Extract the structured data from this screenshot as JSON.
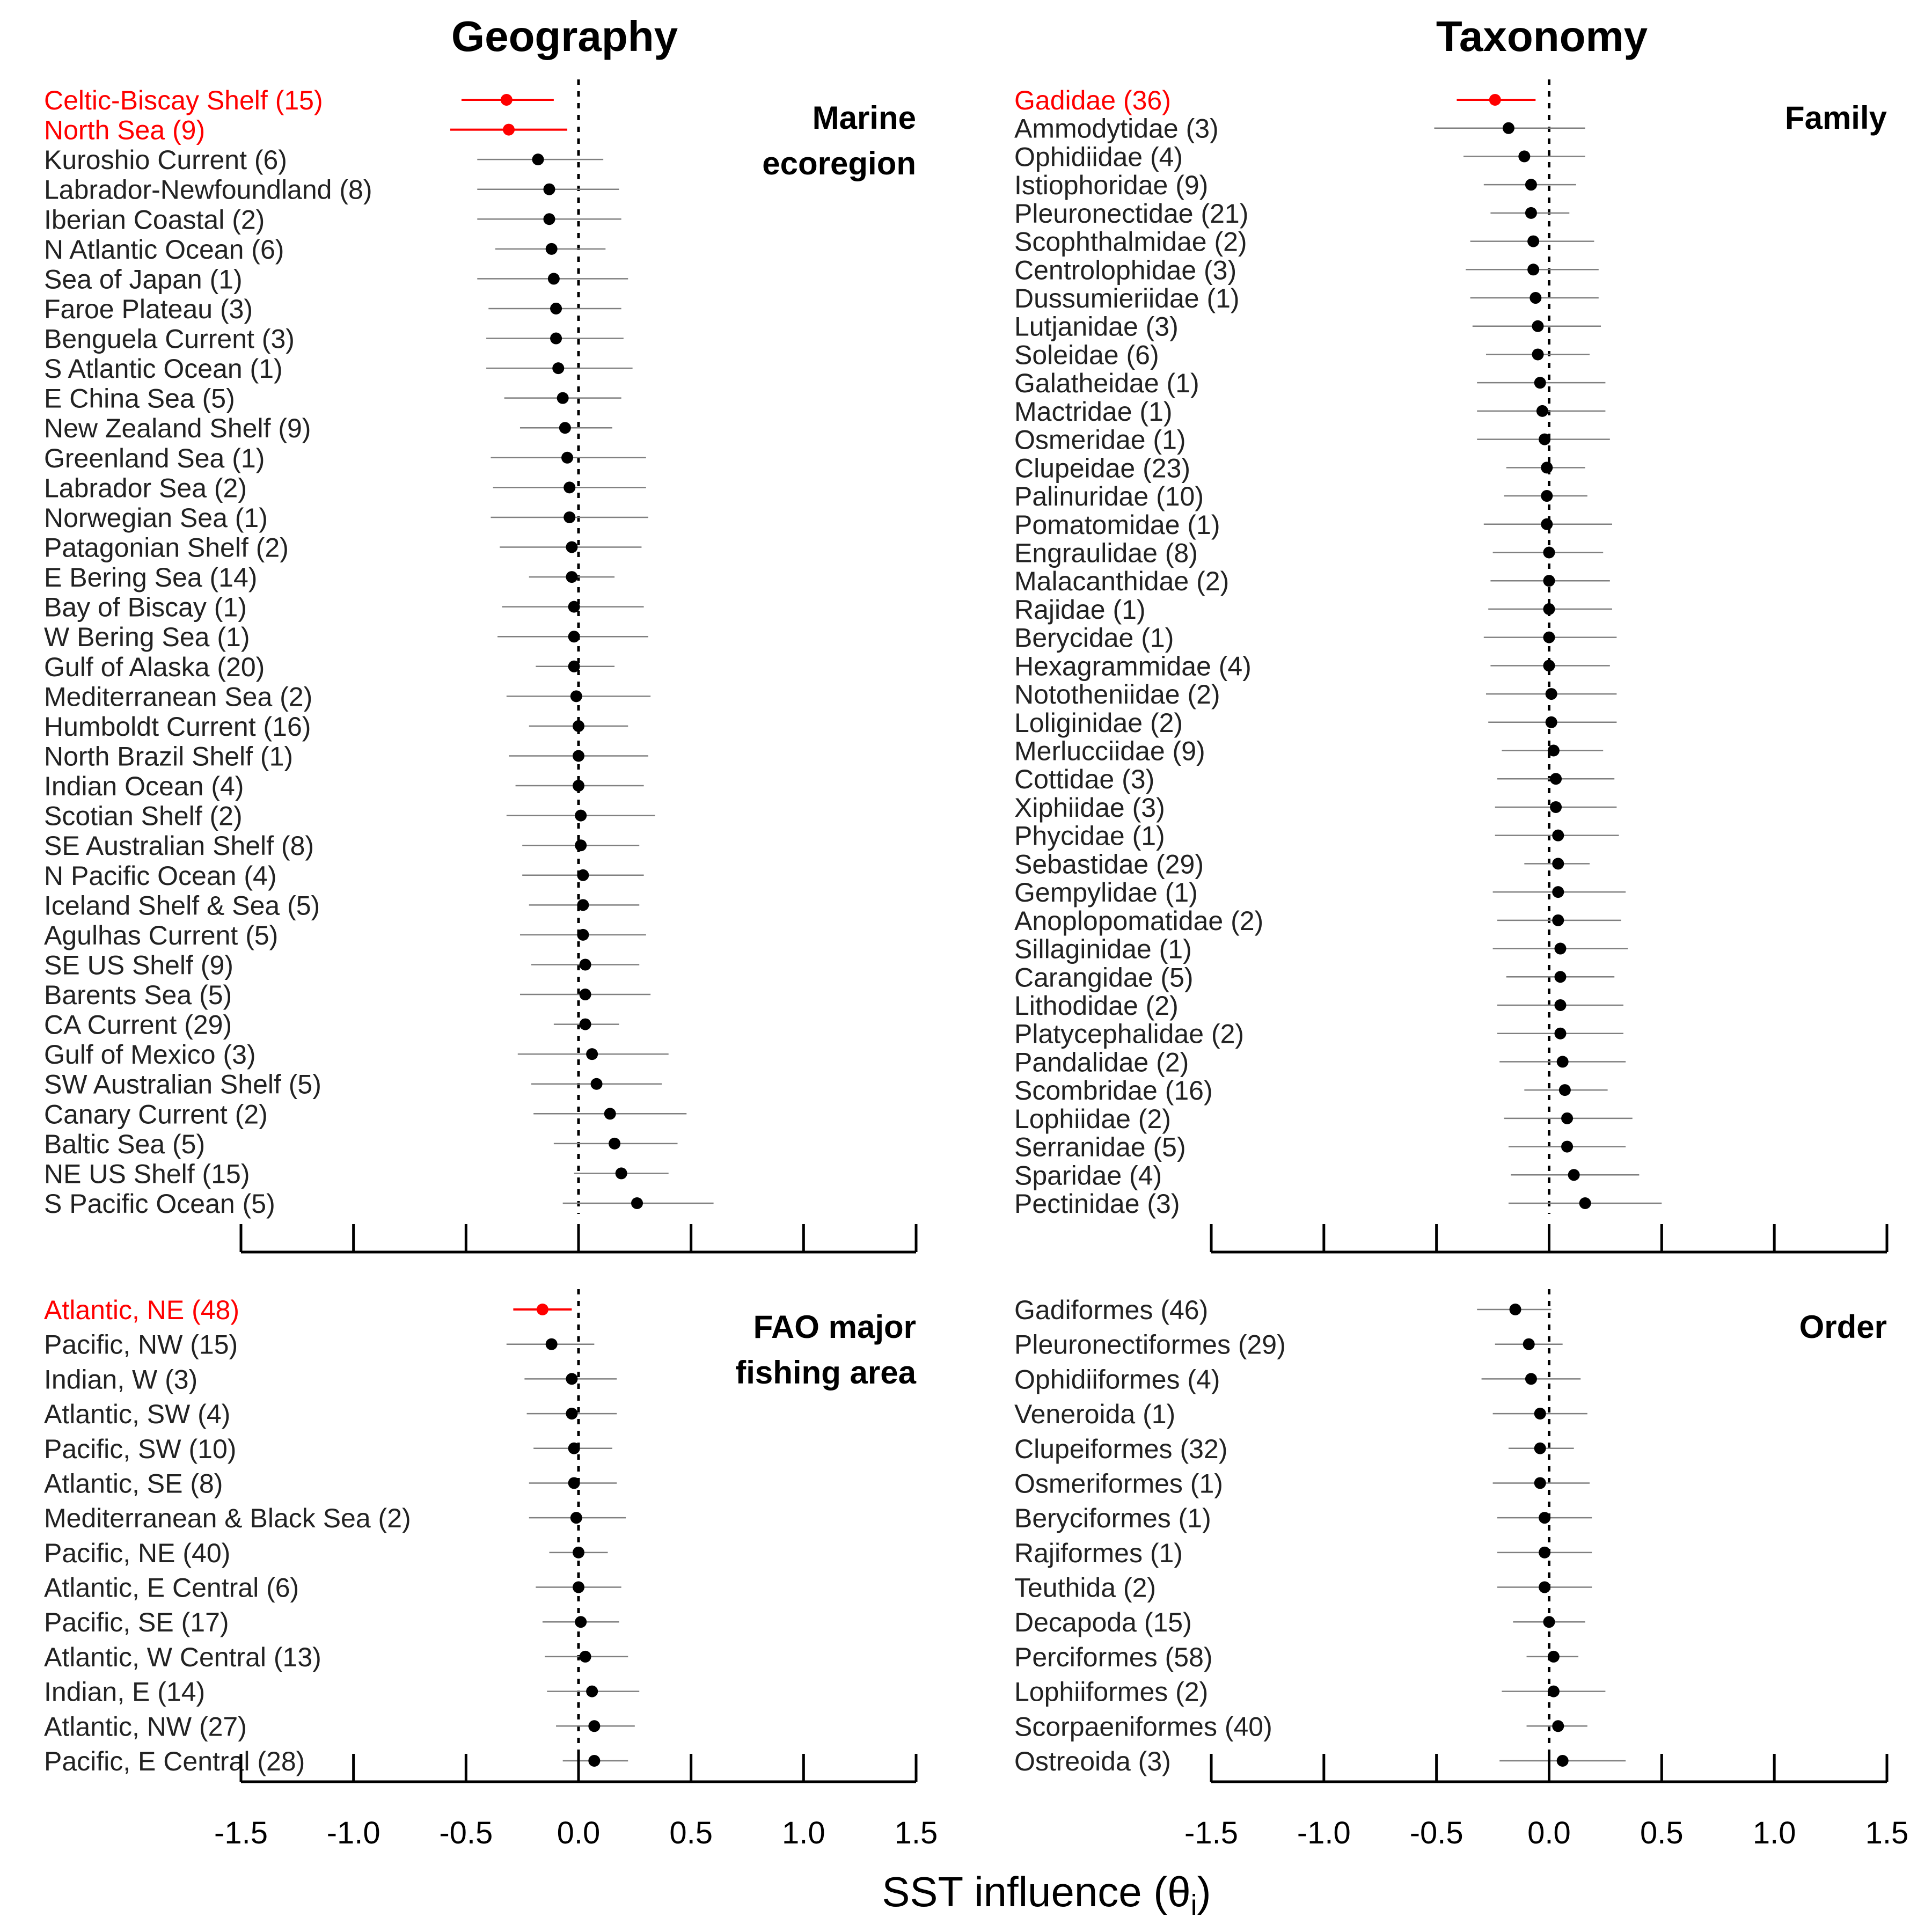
{
  "column_titles": [
    "Geography",
    "Taxonomy"
  ],
  "x_axis": {
    "label": "SST influence (θ",
    "label_sub": "i",
    "label_close": ")",
    "ticks": [
      -1.5,
      -1.0,
      -0.5,
      0.0,
      0.5,
      1.0,
      1.5
    ],
    "tick_labels": [
      "-1.5",
      "-1.0",
      "-0.5",
      "0.0",
      "0.5",
      "1.0",
      "1.5"
    ]
  },
  "colors": {
    "highlight": "#ff0000",
    "normal": "#000000",
    "ci": "#808080"
  },
  "chart_data": [
    {
      "type": "scatter",
      "title_lines": [
        "Marine",
        "ecoregion"
      ],
      "xlim": [
        -1.5,
        1.5
      ],
      "items": [
        {
          "label": "Celtic-Biscay Shelf (15)",
          "est": -0.32,
          "lo": -0.52,
          "hi": -0.11,
          "highlight": true
        },
        {
          "label": "North Sea (9)",
          "est": -0.31,
          "lo": -0.57,
          "hi": -0.05,
          "highlight": true
        },
        {
          "label": "Kuroshio Current (6)",
          "est": -0.18,
          "lo": -0.45,
          "hi": 0.11
        },
        {
          "label": "Labrador-Newfoundland (8)",
          "est": -0.13,
          "lo": -0.45,
          "hi": 0.18
        },
        {
          "label": "Iberian Coastal (2)",
          "est": -0.13,
          "lo": -0.45,
          "hi": 0.19
        },
        {
          "label": "N Atlantic Ocean (6)",
          "est": -0.12,
          "lo": -0.37,
          "hi": 0.12
        },
        {
          "label": "Sea of Japan (1)",
          "est": -0.11,
          "lo": -0.45,
          "hi": 0.22
        },
        {
          "label": "Faroe Plateau (3)",
          "est": -0.1,
          "lo": -0.4,
          "hi": 0.19
        },
        {
          "label": "Benguela Current (3)",
          "est": -0.1,
          "lo": -0.41,
          "hi": 0.2
        },
        {
          "label": "S Atlantic Ocean (1)",
          "est": -0.09,
          "lo": -0.41,
          "hi": 0.24
        },
        {
          "label": "E China Sea (5)",
          "est": -0.07,
          "lo": -0.33,
          "hi": 0.19
        },
        {
          "label": "New Zealand Shelf (9)",
          "est": -0.06,
          "lo": -0.26,
          "hi": 0.15
        },
        {
          "label": "Greenland Sea (1)",
          "est": -0.05,
          "lo": -0.39,
          "hi": 0.3
        },
        {
          "label": "Labrador Sea (2)",
          "est": -0.04,
          "lo": -0.38,
          "hi": 0.3
        },
        {
          "label": "Norwegian Sea (1)",
          "est": -0.04,
          "lo": -0.39,
          "hi": 0.31
        },
        {
          "label": "Patagonian Shelf (2)",
          "est": -0.03,
          "lo": -0.35,
          "hi": 0.28
        },
        {
          "label": "E Bering Sea (14)",
          "est": -0.03,
          "lo": -0.22,
          "hi": 0.16
        },
        {
          "label": "Bay of Biscay (1)",
          "est": -0.02,
          "lo": -0.34,
          "hi": 0.29
        },
        {
          "label": "W Bering Sea (1)",
          "est": -0.02,
          "lo": -0.36,
          "hi": 0.31
        },
        {
          "label": "Gulf of Alaska (20)",
          "est": -0.02,
          "lo": -0.19,
          "hi": 0.16
        },
        {
          "label": "Mediterranean Sea (2)",
          "est": -0.01,
          "lo": -0.32,
          "hi": 0.32
        },
        {
          "label": "Humboldt Current (16)",
          "est": 0.0,
          "lo": -0.22,
          "hi": 0.22
        },
        {
          "label": "North Brazil Shelf (1)",
          "est": 0.0,
          "lo": -0.31,
          "hi": 0.31
        },
        {
          "label": "Indian Ocean (4)",
          "est": 0.0,
          "lo": -0.28,
          "hi": 0.29
        },
        {
          "label": "Scotian Shelf (2)",
          "est": 0.01,
          "lo": -0.32,
          "hi": 0.34
        },
        {
          "label": "SE Australian Shelf (8)",
          "est": 0.01,
          "lo": -0.25,
          "hi": 0.27
        },
        {
          "label": "N Pacific Ocean (4)",
          "est": 0.02,
          "lo": -0.25,
          "hi": 0.29
        },
        {
          "label": "Iceland Shelf & Sea (5)",
          "est": 0.02,
          "lo": -0.22,
          "hi": 0.27
        },
        {
          "label": "Agulhas Current (5)",
          "est": 0.02,
          "lo": -0.26,
          "hi": 0.3
        },
        {
          "label": "SE US Shelf (9)",
          "est": 0.03,
          "lo": -0.21,
          "hi": 0.27
        },
        {
          "label": "Barents Sea (5)",
          "est": 0.03,
          "lo": -0.26,
          "hi": 0.32
        },
        {
          "label": "CA Current (29)",
          "est": 0.03,
          "lo": -0.11,
          "hi": 0.18
        },
        {
          "label": "Gulf of Mexico (3)",
          "est": 0.06,
          "lo": -0.27,
          "hi": 0.4
        },
        {
          "label": "SW Australian Shelf (5)",
          "est": 0.08,
          "lo": -0.21,
          "hi": 0.37
        },
        {
          "label": "Canary Current (2)",
          "est": 0.14,
          "lo": -0.2,
          "hi": 0.48
        },
        {
          "label": "Baltic Sea (5)",
          "est": 0.16,
          "lo": -0.11,
          "hi": 0.44
        },
        {
          "label": "NE US Shelf (15)",
          "est": 0.19,
          "lo": -0.02,
          "hi": 0.4
        },
        {
          "label": "S Pacific Ocean (5)",
          "est": 0.26,
          "lo": -0.07,
          "hi": 0.6
        }
      ]
    },
    {
      "type": "scatter",
      "title_lines": [
        "Family"
      ],
      "xlim": [
        -1.5,
        1.5
      ],
      "items": [
        {
          "label": "Gadidae (36)",
          "est": -0.24,
          "lo": -0.41,
          "hi": -0.06,
          "highlight": true
        },
        {
          "label": "Ammodytidae (3)",
          "est": -0.18,
          "lo": -0.51,
          "hi": 0.16
        },
        {
          "label": "Ophidiidae (4)",
          "est": -0.11,
          "lo": -0.38,
          "hi": 0.16
        },
        {
          "label": "Istiophoridae (9)",
          "est": -0.08,
          "lo": -0.29,
          "hi": 0.12
        },
        {
          "label": "Pleuronectidae (21)",
          "est": -0.08,
          "lo": -0.26,
          "hi": 0.09
        },
        {
          "label": "Scophthalmidae (2)",
          "est": -0.07,
          "lo": -0.35,
          "hi": 0.2
        },
        {
          "label": "Centrolophidae (3)",
          "est": -0.07,
          "lo": -0.37,
          "hi": 0.22
        },
        {
          "label": "Dussumieriidae (1)",
          "est": -0.06,
          "lo": -0.35,
          "hi": 0.22
        },
        {
          "label": "Lutjanidae (3)",
          "est": -0.05,
          "lo": -0.34,
          "hi": 0.23
        },
        {
          "label": "Soleidae (6)",
          "est": -0.05,
          "lo": -0.28,
          "hi": 0.18
        },
        {
          "label": "Galatheidae (1)",
          "est": -0.04,
          "lo": -0.32,
          "hi": 0.25
        },
        {
          "label": "Mactridae (1)",
          "est": -0.03,
          "lo": -0.32,
          "hi": 0.25
        },
        {
          "label": "Osmeridae (1)",
          "est": -0.02,
          "lo": -0.32,
          "hi": 0.27
        },
        {
          "label": "Clupeidae (23)",
          "est": -0.01,
          "lo": -0.19,
          "hi": 0.16
        },
        {
          "label": "Palinuridae (10)",
          "est": -0.01,
          "lo": -0.2,
          "hi": 0.17
        },
        {
          "label": "Pomatomidae (1)",
          "est": -0.01,
          "lo": -0.29,
          "hi": 0.28
        },
        {
          "label": "Engraulidae (8)",
          "est": 0.0,
          "lo": -0.25,
          "hi": 0.24
        },
        {
          "label": "Malacanthidae (2)",
          "est": 0.0,
          "lo": -0.26,
          "hi": 0.27
        },
        {
          "label": "Rajidae (1)",
          "est": 0.0,
          "lo": -0.27,
          "hi": 0.28
        },
        {
          "label": "Berycidae (1)",
          "est": 0.0,
          "lo": -0.29,
          "hi": 0.3
        },
        {
          "label": "Hexagrammidae (4)",
          "est": 0.0,
          "lo": -0.26,
          "hi": 0.27
        },
        {
          "label": "Nototheniidae (2)",
          "est": 0.01,
          "lo": -0.28,
          "hi": 0.3
        },
        {
          "label": "Loliginidae (2)",
          "est": 0.01,
          "lo": -0.27,
          "hi": 0.3
        },
        {
          "label": "Merlucciidae (9)",
          "est": 0.02,
          "lo": -0.21,
          "hi": 0.24
        },
        {
          "label": "Cottidae (3)",
          "est": 0.03,
          "lo": -0.23,
          "hi": 0.29
        },
        {
          "label": "Xiphiidae (3)",
          "est": 0.03,
          "lo": -0.24,
          "hi": 0.3
        },
        {
          "label": "Phycidae (1)",
          "est": 0.04,
          "lo": -0.24,
          "hi": 0.31
        },
        {
          "label": "Sebastidae (29)",
          "est": 0.04,
          "lo": -0.11,
          "hi": 0.18
        },
        {
          "label": "Gempylidae (1)",
          "est": 0.04,
          "lo": -0.25,
          "hi": 0.34
        },
        {
          "label": "Anoplopomatidae (2)",
          "est": 0.04,
          "lo": -0.23,
          "hi": 0.32
        },
        {
          "label": "Sillaginidae (1)",
          "est": 0.05,
          "lo": -0.25,
          "hi": 0.35
        },
        {
          "label": "Carangidae (5)",
          "est": 0.05,
          "lo": -0.19,
          "hi": 0.29
        },
        {
          "label": "Lithodidae (2)",
          "est": 0.05,
          "lo": -0.23,
          "hi": 0.33
        },
        {
          "label": "Platycephalidae (2)",
          "est": 0.05,
          "lo": -0.23,
          "hi": 0.33
        },
        {
          "label": "Pandalidae (2)",
          "est": 0.06,
          "lo": -0.22,
          "hi": 0.34
        },
        {
          "label": "Scombridae (16)",
          "est": 0.07,
          "lo": -0.11,
          "hi": 0.26
        },
        {
          "label": "Lophiidae (2)",
          "est": 0.08,
          "lo": -0.2,
          "hi": 0.37
        },
        {
          "label": "Serranidae (5)",
          "est": 0.08,
          "lo": -0.18,
          "hi": 0.34
        },
        {
          "label": "Sparidae (4)",
          "est": 0.11,
          "lo": -0.17,
          "hi": 0.4
        },
        {
          "label": "Pectinidae (3)",
          "est": 0.16,
          "lo": -0.18,
          "hi": 0.5
        }
      ]
    },
    {
      "type": "scatter",
      "title_lines": [
        "FAO major",
        "fishing area"
      ],
      "xlim": [
        -1.5,
        1.5
      ],
      "items": [
        {
          "label": "Atlantic, NE (48)",
          "est": -0.16,
          "lo": -0.29,
          "hi": -0.03,
          "highlight": true
        },
        {
          "label": "Pacific, NW (15)",
          "est": -0.12,
          "lo": -0.32,
          "hi": 0.07
        },
        {
          "label": "Indian, W (3)",
          "est": -0.03,
          "lo": -0.24,
          "hi": 0.17
        },
        {
          "label": "Atlantic, SW (4)",
          "est": -0.03,
          "lo": -0.23,
          "hi": 0.17
        },
        {
          "label": "Pacific, SW (10)",
          "est": -0.02,
          "lo": -0.2,
          "hi": 0.15
        },
        {
          "label": "Atlantic, SE (8)",
          "est": -0.02,
          "lo": -0.22,
          "hi": 0.17
        },
        {
          "label": "Mediterranean & Black Sea (2)",
          "est": -0.01,
          "lo": -0.22,
          "hi": 0.21
        },
        {
          "label": "Pacific, NE (40)",
          "est": 0.0,
          "lo": -0.13,
          "hi": 0.13
        },
        {
          "label": "Atlantic, E Central (6)",
          "est": 0.0,
          "lo": -0.19,
          "hi": 0.19
        },
        {
          "label": "Pacific, SE (17)",
          "est": 0.01,
          "lo": -0.16,
          "hi": 0.18
        },
        {
          "label": "Atlantic, W Central (13)",
          "est": 0.03,
          "lo": -0.15,
          "hi": 0.22
        },
        {
          "label": "Indian, E (14)",
          "est": 0.06,
          "lo": -0.14,
          "hi": 0.27
        },
        {
          "label": "Atlantic, NW (27)",
          "est": 0.07,
          "lo": -0.1,
          "hi": 0.25
        },
        {
          "label": "Pacific, E Central (28)",
          "est": 0.07,
          "lo": -0.07,
          "hi": 0.22
        }
      ]
    },
    {
      "type": "scatter",
      "title_lines": [
        "Order"
      ],
      "xlim": [
        -1.5,
        1.5
      ],
      "items": [
        {
          "label": "Gadiformes (46)",
          "est": -0.15,
          "lo": -0.32,
          "hi": 0.01
        },
        {
          "label": "Pleuronectiformes (29)",
          "est": -0.09,
          "lo": -0.24,
          "hi": 0.06
        },
        {
          "label": "Ophidiiformes (4)",
          "est": -0.08,
          "lo": -0.3,
          "hi": 0.14
        },
        {
          "label": "Veneroida (1)",
          "est": -0.04,
          "lo": -0.25,
          "hi": 0.17
        },
        {
          "label": "Clupeiformes (32)",
          "est": -0.04,
          "lo": -0.18,
          "hi": 0.11
        },
        {
          "label": "Osmeriformes (1)",
          "est": -0.04,
          "lo": -0.25,
          "hi": 0.18
        },
        {
          "label": "Beryciformes (1)",
          "est": -0.02,
          "lo": -0.23,
          "hi": 0.19
        },
        {
          "label": "Rajiformes (1)",
          "est": -0.02,
          "lo": -0.23,
          "hi": 0.19
        },
        {
          "label": "Teuthida (2)",
          "est": -0.02,
          "lo": -0.23,
          "hi": 0.19
        },
        {
          "label": "Decapoda (15)",
          "est": 0.0,
          "lo": -0.16,
          "hi": 0.16
        },
        {
          "label": "Perciformes (58)",
          "est": 0.02,
          "lo": -0.1,
          "hi": 0.13
        },
        {
          "label": "Lophiiformes (2)",
          "est": 0.02,
          "lo": -0.21,
          "hi": 0.25
        },
        {
          "label": "Scorpaeniformes (40)",
          "est": 0.04,
          "lo": -0.1,
          "hi": 0.17
        },
        {
          "label": "Ostreoida (3)",
          "est": 0.06,
          "lo": -0.22,
          "hi": 0.34
        }
      ]
    }
  ]
}
